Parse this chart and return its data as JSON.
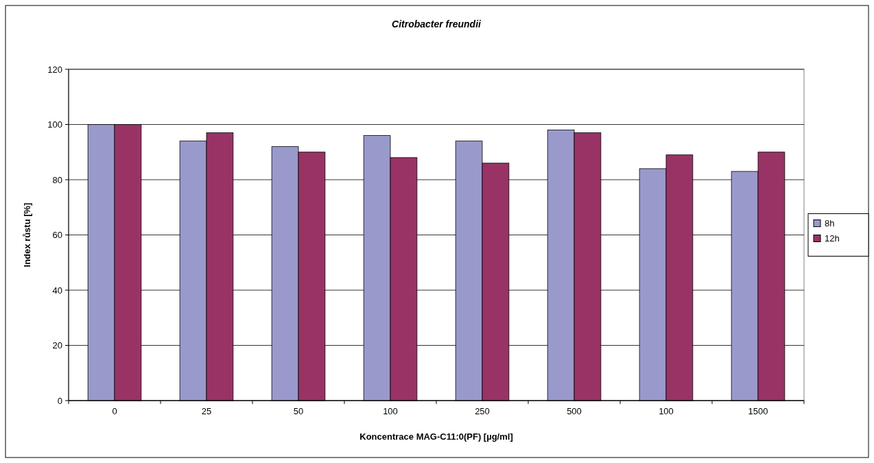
{
  "chart_data": {
    "type": "bar",
    "title": "Citrobacter freundii",
    "xlabel": "Koncentrace MAG-C11:0(PF) [µg/ml]",
    "ylabel": "Index růstu [%]",
    "categories": [
      "0",
      "25",
      "50",
      "100",
      "250",
      "500",
      "100",
      "1500"
    ],
    "series": [
      {
        "name": "8h",
        "color": "#9999cc",
        "values": [
          100,
          94,
          92,
          96,
          94,
          98,
          84,
          83
        ]
      },
      {
        "name": "12h",
        "color": "#993366",
        "values": [
          100,
          97,
          90,
          88,
          86,
          97,
          89,
          90
        ]
      }
    ],
    "ylim": [
      0,
      120
    ],
    "yticks": [
      0,
      20,
      40,
      60,
      80,
      100,
      120
    ],
    "grid": "y",
    "legend": "right"
  }
}
